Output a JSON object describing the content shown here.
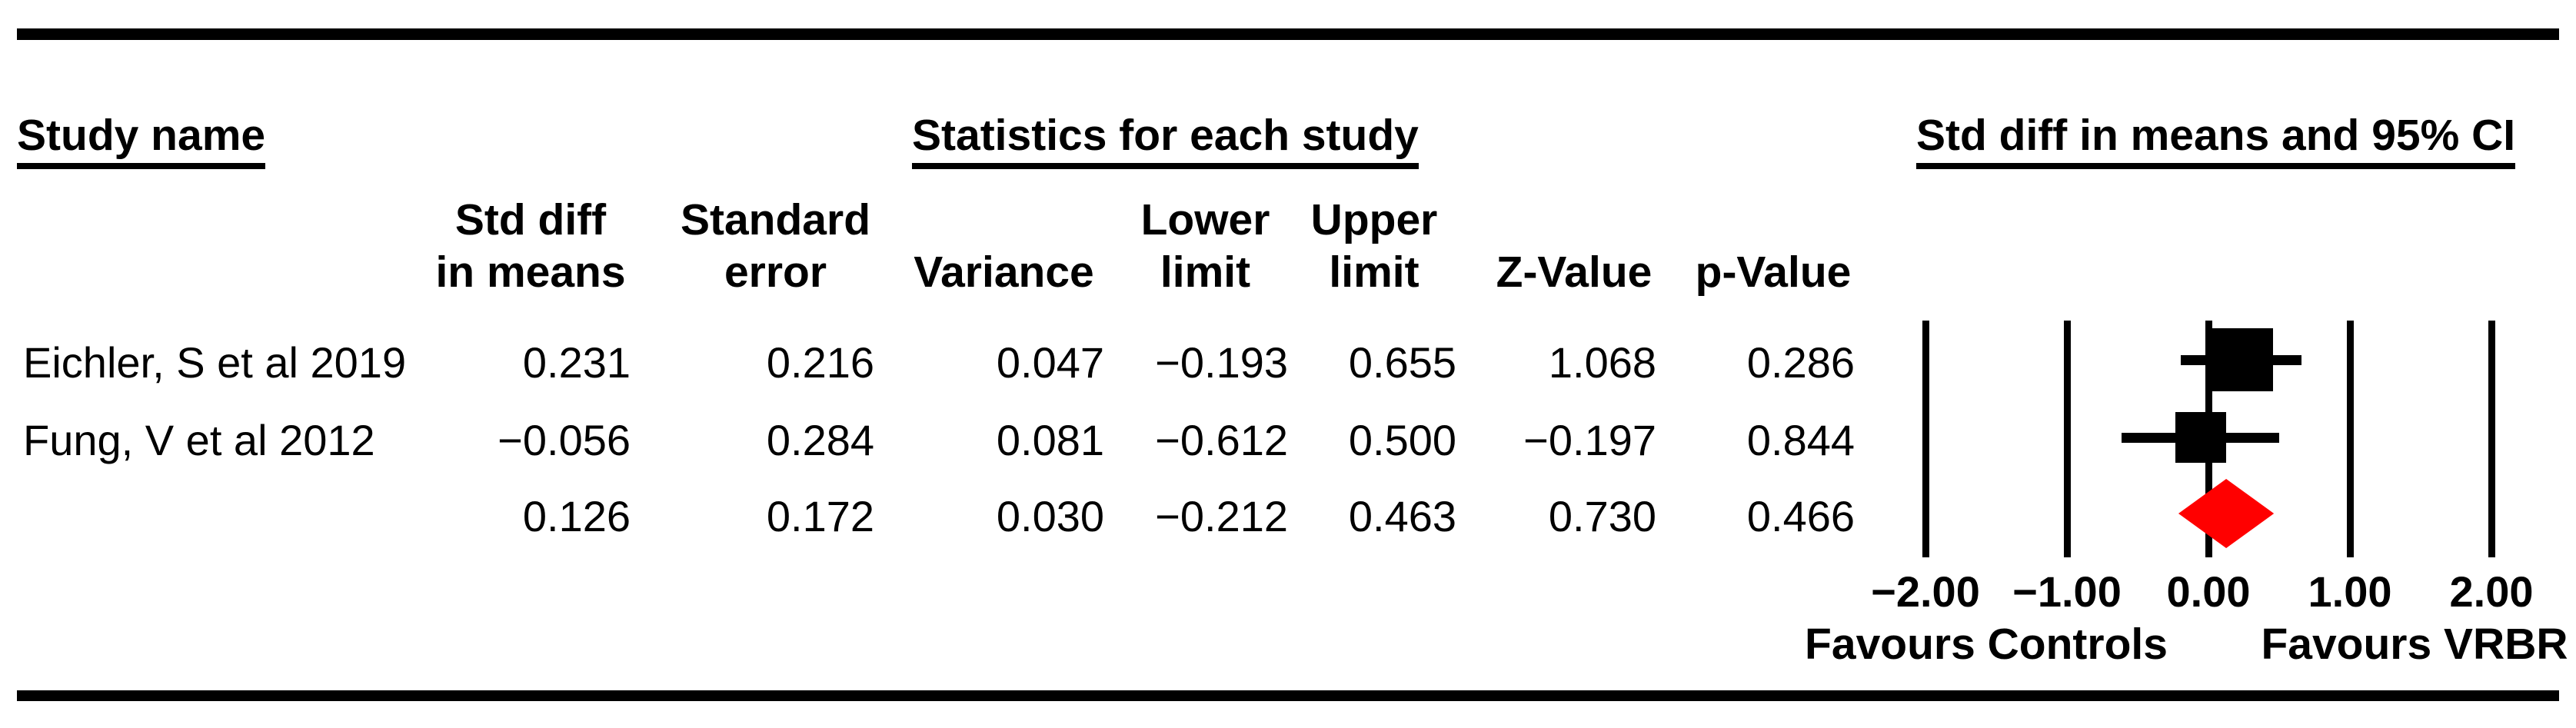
{
  "header": {
    "study_name_label": "Study name",
    "statistics_label": "Statistics for each study",
    "plot_label": "Std diff in means and 95% CI"
  },
  "table": {
    "column_headers": [
      {
        "line1": "Std diff",
        "line2": "in means"
      },
      {
        "line1": "Standard",
        "line2": "error"
      },
      {
        "line1": "",
        "line2": "Variance"
      },
      {
        "line1": "Lower",
        "line2": "limit"
      },
      {
        "line1": "Upper",
        "line2": "limit"
      },
      {
        "line1": "",
        "line2": "Z-Value"
      },
      {
        "line1": "",
        "line2": "p-Value"
      }
    ],
    "rows": [
      {
        "study": "Eichler, S et al 2019",
        "std_diff_in_means": "0.231",
        "standard_error": "0.216",
        "variance": "0.047",
        "lower_limit": "−0.193",
        "upper_limit": "0.655",
        "z_value": "1.068",
        "p_value": "0.286"
      },
      {
        "study": "Fung, V et al 2012",
        "std_diff_in_means": "−0.056",
        "standard_error": "0.284",
        "variance": "0.081",
        "lower_limit": "−0.612",
        "upper_limit": "0.500",
        "z_value": "−0.197",
        "p_value": "0.844"
      },
      {
        "study": "",
        "std_diff_in_means": "0.126",
        "standard_error": "0.172",
        "variance": "0.030",
        "lower_limit": "−0.212",
        "upper_limit": "0.463",
        "z_value": "0.730",
        "p_value": "0.466"
      }
    ]
  },
  "chart_data": {
    "type": "forest",
    "title": "Std diff in means and 95% CI",
    "effect_measure": "Std diff in means",
    "xlim": [
      -2,
      2
    ],
    "x_ticks": [
      {
        "value": -2,
        "label": "−2.00"
      },
      {
        "value": -1,
        "label": "−1.00"
      },
      {
        "value": 0,
        "label": "0.00"
      },
      {
        "value": 1,
        "label": "1.00"
      },
      {
        "value": 2,
        "label": "2.00"
      }
    ],
    "studies": [
      {
        "name": "Eichler, S et al 2019",
        "estimate": 0.231,
        "lower": -0.193,
        "upper": 0.655,
        "marker_size": 82
      },
      {
        "name": "Fung, V et al 2012",
        "estimate": -0.056,
        "lower": -0.612,
        "upper": 0.5,
        "marker_size": 66
      }
    ],
    "summary": {
      "estimate": 0.126,
      "lower": -0.212,
      "upper": 0.463,
      "marker": "diamond",
      "half_height": 45
    },
    "footer": {
      "left": "Favours Controls",
      "right": "Favours VRBR"
    }
  },
  "colors": {
    "text": "#000000",
    "rule_bars": "#000000",
    "study_marker": "#000000",
    "summary_diamond": "#FF0000"
  }
}
